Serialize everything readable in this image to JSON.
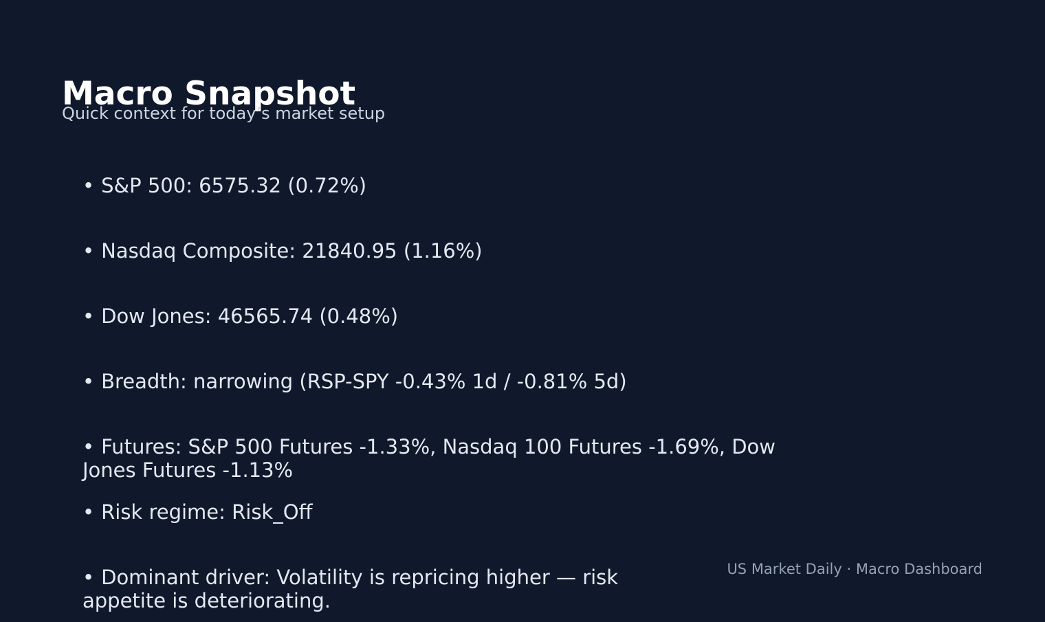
{
  "header": {
    "title": "Macro Snapshot",
    "subtitle": "Quick context for today’s market setup"
  },
  "bullet_marker": "•",
  "bullets": [
    "S&P 500: 6575.32 (0.72%)",
    "Nasdaq Composite: 21840.95 (1.16%)",
    "Dow Jones: 46565.74 (0.48%)",
    "Breadth: narrowing (RSP-SPY -0.43% 1d / -0.81% 5d)",
    "Futures: S&P 500 Futures -1.33%, Nasdaq 100 Futures -1.69%, Dow Jones Futures -1.13%",
    "Risk regime: Risk_Off",
    "Dominant driver: Volatility is repricing higher — risk appetite is deteriorating."
  ],
  "footer": {
    "label": "US Market Daily · Macro Dashboard"
  },
  "colors": {
    "background": "#10192b",
    "title": "#ffffff",
    "text": "#e3e8f1",
    "muted": "#95a2b6"
  }
}
